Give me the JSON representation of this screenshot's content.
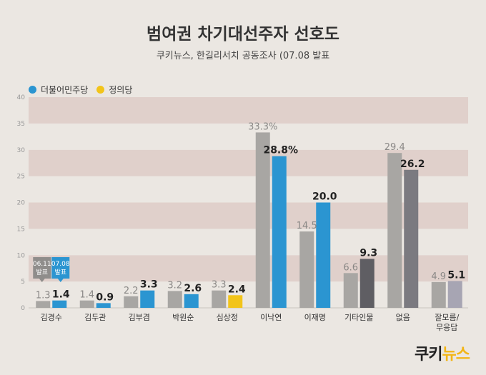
{
  "title": "범여권 차기대선주자 선호도",
  "subtitle": "쿠키뉴스, 한길리서치 공동조사 (07.08 발표",
  "legend": [
    {
      "name": "더불어민주당",
      "color": "#2b95d1"
    },
    {
      "name": "정의당",
      "color": "#f2c41a"
    }
  ],
  "logo": {
    "part1": "쿠키",
    "part2": "뉴스"
  },
  "colors": {
    "jun_bar": "#a8a6a3",
    "jul_minju": "#2b95d1",
    "jul_jeongui": "#f2c41a",
    "jul_other": "#5f5e63",
    "jul_none": "#7b7a80",
    "jul_unsure": "#a7a5b3",
    "band": "#e0d0cb",
    "band_alt": "#ebe7e2"
  },
  "chart_data": {
    "type": "bar",
    "ylim": [
      0,
      40
    ],
    "yticks": [
      0,
      5,
      10,
      15,
      20,
      25,
      30,
      35,
      40
    ],
    "categories": [
      "김경수",
      "김두관",
      "김부겸",
      "박원순",
      "심상정",
      "이낙연",
      "이재명",
      "기타인물",
      "없음",
      "잘모름/\n무응답"
    ],
    "series": [
      {
        "values": [
          1.3,
          1.4,
          2.2,
          3.2,
          3.3,
          33.3,
          14.5,
          6.6,
          29.4,
          4.9
        ],
        "labels": [
          "1.3",
          "1.4",
          "2.2",
          "3.2",
          "3.3",
          "33.3%",
          "14.5",
          "6.6",
          "29.4",
          "4.9"
        ]
      },
      {
        "values": [
          1.4,
          0.9,
          3.3,
          2.6,
          2.4,
          28.8,
          20.0,
          9.3,
          26.2,
          5.1
        ],
        "labels": [
          "1.4",
          "0.9",
          "3.3",
          "2.6",
          "2.4",
          "28.8%",
          "20.0",
          "9.3",
          "26.2",
          "5.1"
        ],
        "party": [
          "minju",
          "minju",
          "minju",
          "minju",
          "jeongui",
          "minju",
          "minju",
          "other",
          "none",
          "unsure"
        ]
      }
    ],
    "annotations": [
      {
        "text": "06.11\n발표",
        "series": 0,
        "category": 0
      },
      {
        "text": "07.08\n발표",
        "series": 1,
        "category": 0
      }
    ],
    "grid": "alternating horizontal bands"
  }
}
